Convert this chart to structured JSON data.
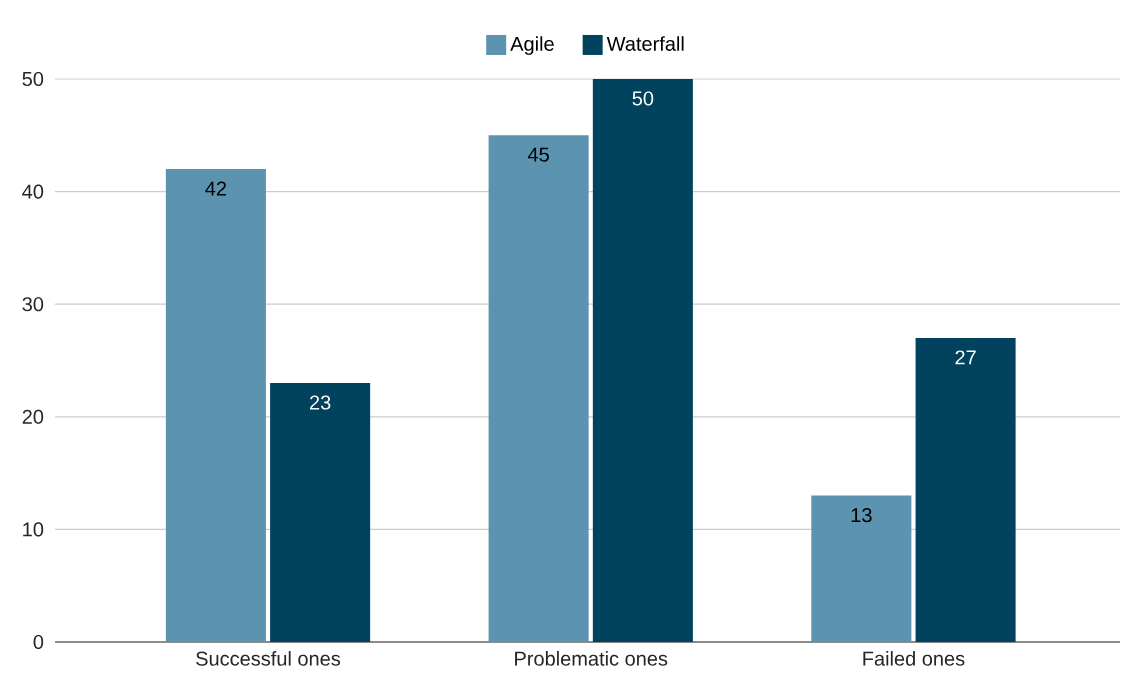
{
  "chart_data": {
    "type": "bar",
    "categories": [
      "Successful ones",
      "Problematic ones",
      "Failed ones"
    ],
    "series": [
      {
        "name": "Agile",
        "color": "#5b93b0",
        "values": [
          42,
          45,
          13
        ]
      },
      {
        "name": "Waterfall",
        "color": "#01435f",
        "values": [
          23,
          50,
          27
        ]
      }
    ],
    "ylim": [
      0,
      50
    ],
    "yticks": [
      0,
      10,
      20,
      30,
      40,
      50
    ],
    "grid": "y",
    "legend": "top",
    "data_labels": true
  }
}
